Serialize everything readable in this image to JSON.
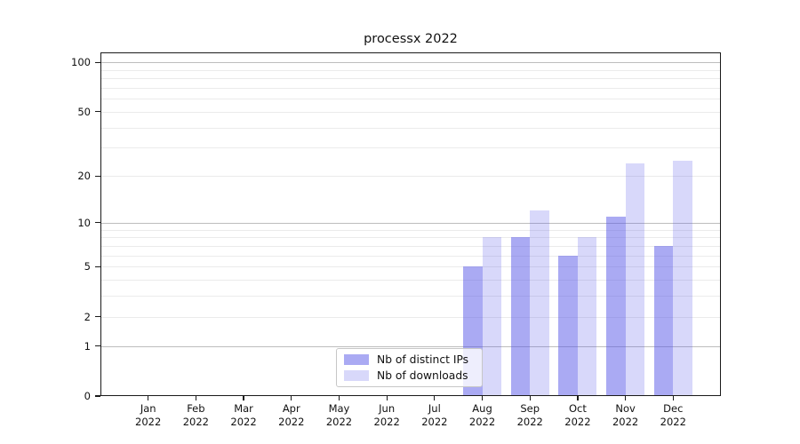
{
  "title": "processx 2022",
  "chart_data": {
    "type": "bar",
    "title": "processx 2022",
    "categories": [
      "Jan 2022",
      "Feb 2022",
      "Mar 2022",
      "Apr 2022",
      "May 2022",
      "Jun 2022",
      "Jul 2022",
      "Aug 2022",
      "Sep 2022",
      "Oct 2022",
      "Nov 2022",
      "Dec 2022"
    ],
    "series": [
      {
        "name": "Nb of distinct IPs",
        "color": "rgba(86,86,232,0.5)",
        "values": [
          0,
          0,
          0,
          0,
          0,
          0,
          0,
          5,
          8,
          6,
          11,
          7
        ]
      },
      {
        "name": "Nb of downloads",
        "color": "rgba(86,86,232,0.23)",
        "values": [
          0,
          0,
          0,
          0,
          0,
          0,
          0,
          8,
          12,
          8,
          24,
          25
        ]
      }
    ],
    "xlabel": "",
    "ylabel": "",
    "yscale": "log1p",
    "yticks": [
      0,
      1,
      2,
      5,
      10,
      20,
      50,
      100
    ],
    "ylim": [
      0,
      115
    ],
    "minor_gridlines": [
      2,
      3,
      4,
      5,
      6,
      7,
      8,
      9,
      20,
      30,
      40,
      50,
      60,
      70,
      80,
      90
    ],
    "major_gridlines": [
      1,
      10,
      100
    ],
    "grid": "on",
    "legend_position": "lower center"
  }
}
